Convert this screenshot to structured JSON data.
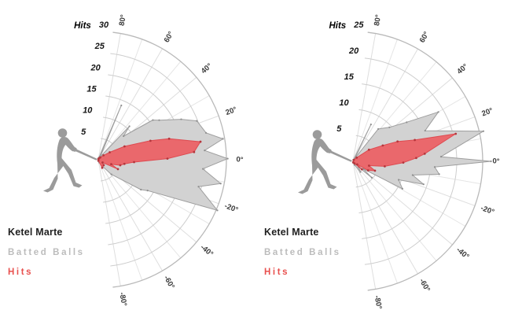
{
  "page": {
    "background": "#ffffff"
  },
  "chart_data": [
    {
      "type": "polar_area",
      "radial_axis_title": "Hits",
      "legend": [
        "Ketel Marte",
        "Batted Balls",
        "Hits"
      ],
      "radial_ticks": [
        5,
        10,
        15,
        20,
        25,
        30
      ],
      "radial_range": [
        0,
        30
      ],
      "angular_tick_values": [
        80,
        60,
        40,
        20,
        0,
        -20,
        -40,
        -60,
        -80
      ],
      "angular_tick_labels": [
        "80°",
        "60°",
        "40°",
        "20°",
        "0°",
        "-20°",
        "-40°",
        "-60°",
        "-80°"
      ],
      "grid": "rings every 5 hits, spokes every 10 degrees",
      "legend_position": "bottom-left",
      "series": [
        {
          "name": "Batted Balls",
          "fill": "#d2d2d2",
          "stroke": "#9e9e9e",
          "marker": "#8f8f8f",
          "points_angle_value": [
            [
              80,
              0.4
            ],
            [
              75,
              0.5
            ],
            [
              67,
              13.8
            ],
            [
              56,
              0.8
            ],
            [
              47,
              10.7
            ],
            [
              43,
              8.1
            ],
            [
              36,
              15.8
            ],
            [
              33,
              17
            ],
            [
              26,
              21.6
            ],
            [
              21.5,
              24.8
            ],
            [
              14,
              26
            ],
            [
              9.5,
              29.6
            ],
            [
              5,
              25
            ],
            [
              0.5,
              30.3
            ],
            [
              -5,
              24.6
            ],
            [
              -11,
              29.2
            ],
            [
              -15,
              24.3
            ],
            [
              -23,
              30.3
            ],
            [
              -32,
              13.6
            ],
            [
              -35,
              12.2
            ],
            [
              -48,
              4.6
            ],
            [
              -60,
              1.5
            ],
            [
              -70,
              0.7
            ],
            [
              -80,
              0.4
            ]
          ]
        },
        {
          "name": "Hits",
          "fill": "#ea686c",
          "stroke": "#de4a50",
          "marker": "#b5373d",
          "points_angle_value": [
            [
              80,
              0.2
            ],
            [
              60,
              0.4
            ],
            [
              50,
              0.7
            ],
            [
              40,
              1.6
            ],
            [
              33,
              3.2
            ],
            [
              27,
              6.9
            ],
            [
              20,
              13
            ],
            [
              16.5,
              17.3
            ],
            [
              10,
              24.3
            ],
            [
              4.6,
              22.5
            ],
            [
              0.9,
              16.2
            ],
            [
              -3.8,
              8.4
            ],
            [
              -9,
              6.2
            ],
            [
              -14,
              5.3
            ],
            [
              -19,
              3.2
            ],
            [
              -25.5,
              5.1
            ],
            [
              -33,
              1.2
            ],
            [
              -45,
              1.8
            ],
            [
              -64,
              2.1
            ],
            [
              -80,
              0.2
            ]
          ]
        }
      ]
    },
    {
      "type": "polar_area",
      "radial_axis_title": "Hits",
      "legend": [
        "Ketel Marte",
        "Batted Balls",
        "Hits"
      ],
      "radial_ticks": [
        5,
        10,
        15,
        20,
        25
      ],
      "radial_range": [
        0,
        25
      ],
      "angular_tick_values": [
        80,
        60,
        40,
        20,
        0,
        -20,
        -40,
        -60,
        -80
      ],
      "angular_tick_labels": [
        "80°",
        "60°",
        "40°",
        "20°",
        "0°",
        "-20°",
        "-40°",
        "-60°",
        "-80°"
      ],
      "grid": "rings every 5 hits, spokes every 10 degrees",
      "legend_position": "bottom-left",
      "series": [
        {
          "name": "Batted Balls",
          "fill": "#d2d2d2",
          "stroke": "#9e9e9e",
          "marker": "#8f8f8f",
          "points_angle_value": [
            [
              80,
              0.3
            ],
            [
              72,
              0.3
            ],
            [
              64,
              7.9
            ],
            [
              58,
              0.6
            ],
            [
              52,
              7.9
            ],
            [
              43,
              9.6
            ],
            [
              36,
              12.8
            ],
            [
              30,
              19
            ],
            [
              23,
              15.1
            ],
            [
              13,
              25.8
            ],
            [
              3,
              17
            ],
            [
              0,
              26.6
            ],
            [
              -4,
              15.8
            ],
            [
              -8.5,
              16.8
            ],
            [
              -13,
              11.8
            ],
            [
              -18,
              14.3
            ],
            [
              -22,
              9.5
            ],
            [
              -29,
              10.9
            ],
            [
              -36,
              2.5
            ],
            [
              -41,
              4.8
            ],
            [
              -46,
              1.5
            ],
            [
              -55,
              2.5
            ],
            [
              -65,
              0.8
            ],
            [
              -80,
              0.3
            ]
          ]
        },
        {
          "name": "Hits",
          "fill": "#ea686c",
          "stroke": "#de4a50",
          "marker": "#b5373d",
          "points_angle_value": [
            [
              60,
              0.3
            ],
            [
              45,
              1
            ],
            [
              36,
              3.8
            ],
            [
              28,
              6.5
            ],
            [
              24,
              9.4
            ],
            [
              19,
              12.6
            ],
            [
              15,
              20.5
            ],
            [
              6,
              13.9
            ],
            [
              3,
              12.2
            ],
            [
              -1.5,
              9.7
            ],
            [
              -9,
              6.2
            ],
            [
              -15,
              3.2
            ],
            [
              -23,
              4.6
            ],
            [
              -31,
              3.4
            ],
            [
              -36,
              1
            ],
            [
              -42,
              2.3
            ],
            [
              -55,
              0.5
            ],
            [
              -80,
              0.2
            ]
          ]
        }
      ]
    }
  ],
  "style_colors": {
    "ring": "#cdcdcd",
    "outer_ring": "#b9b9b9",
    "spoke": "#e5e5e5",
    "angle_label": "#3a3a3a",
    "radial_label": "#151515",
    "silhouette": "#9b9b9b"
  }
}
